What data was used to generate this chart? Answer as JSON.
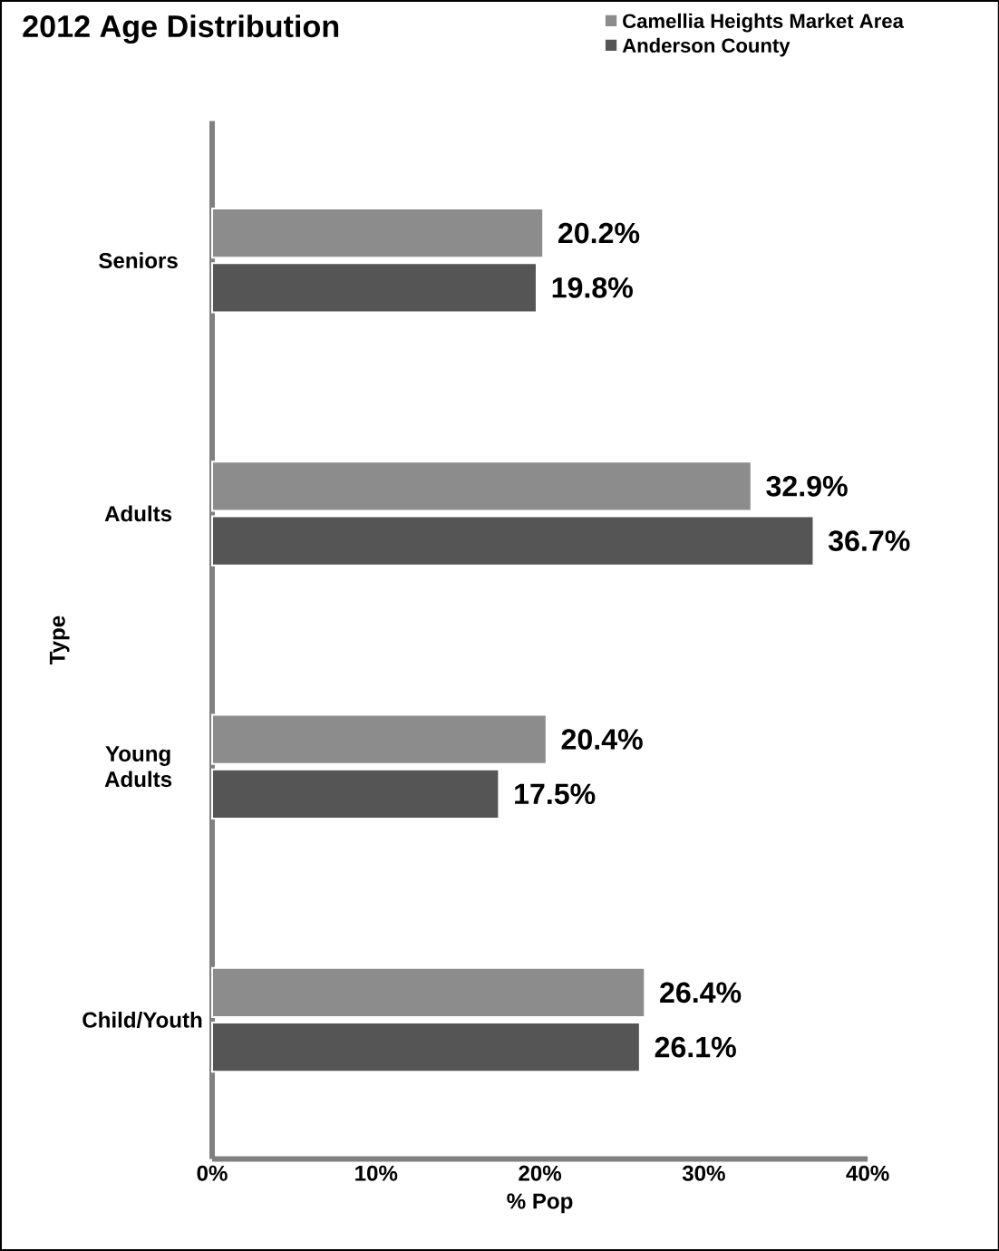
{
  "chart_data": {
    "type": "bar",
    "orientation": "horizontal",
    "title": "2012 Age Distribution",
    "xlabel": "% Pop",
    "ylabel": "Type",
    "categories": [
      "Seniors",
      "Adults",
      "Young Adults",
      "Child/Youth"
    ],
    "series": [
      {
        "name": "Camellia Heights Market Area",
        "color": "#8c8c8c",
        "values": [
          20.2,
          32.9,
          20.4,
          26.4
        ],
        "value_labels": [
          "20.2%",
          "32.9%",
          "20.4%",
          "26.4%"
        ]
      },
      {
        "name": "Anderson County",
        "color": "#555555",
        "values": [
          19.8,
          36.7,
          17.5,
          26.1
        ],
        "value_labels": [
          "19.8%",
          "36.7%",
          "17.5%",
          "26.1%"
        ]
      }
    ],
    "xlim": [
      0,
      40
    ],
    "xticks": [
      {
        "value": 0,
        "label": "0%"
      },
      {
        "value": 10,
        "label": "10%"
      },
      {
        "value": 20,
        "label": "20%"
      },
      {
        "value": 30,
        "label": "30%"
      },
      {
        "value": 40,
        "label": "40%"
      }
    ],
    "legend": "top right",
    "grid": false
  }
}
